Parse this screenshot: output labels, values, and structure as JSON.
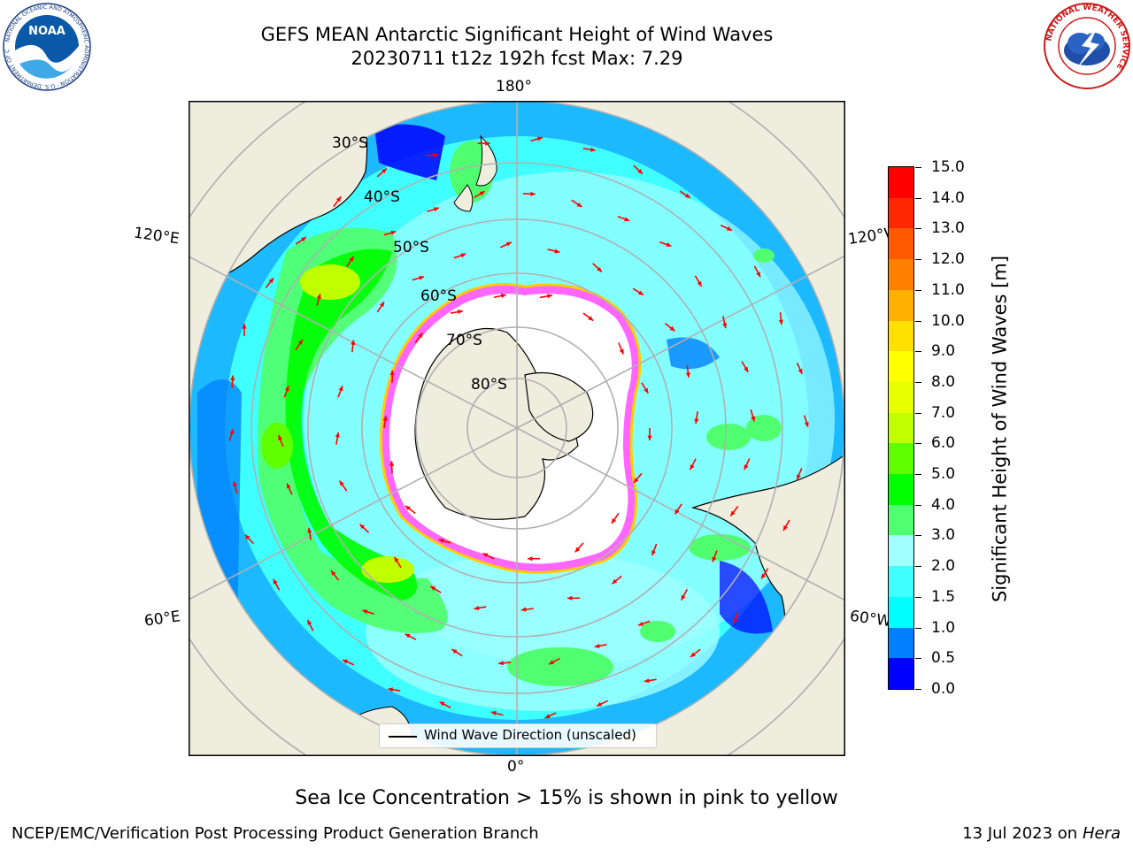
{
  "title": {
    "line1": "GEFS MEAN Antarctic Significant Height of Wind Waves",
    "line2": "20230711 t12z 192h fcst   Max: 7.29"
  },
  "map": {
    "projection": "south-polar-stereographic",
    "longitude_labels": [
      "180°",
      "120°E",
      "120°W",
      "60°E",
      "60°W",
      "0°"
    ],
    "latitude_labels": [
      "30°S",
      "40°S",
      "50°S",
      "60°S",
      "70°S",
      "80°S"
    ],
    "legend_label": "Wind Wave Direction (unscaled)",
    "land_color": "#EEEDDE",
    "arrow_color": "#ff0000"
  },
  "colorbar": {
    "label": "Significant Height of Wind Waves [m]",
    "ticks": [
      "0.0",
      "0.5",
      "1.0",
      "1.5",
      "2.0",
      "3.0",
      "4.0",
      "5.0",
      "6.0",
      "7.0",
      "8.0",
      "9.0",
      "10.0",
      "11.0",
      "12.0",
      "13.0",
      "14.0",
      "15.0"
    ],
    "colors": [
      "#0000ff",
      "#0080ff",
      "#00ffff",
      "#40ffff",
      "#a0ffff",
      "#50ff70",
      "#00ff00",
      "#60ff00",
      "#c0ff00",
      "#e8ff00",
      "#ffff00",
      "#ffe000",
      "#ffb000",
      "#ff8000",
      "#ff5a00",
      "#ff2800",
      "#ff0000"
    ]
  },
  "chart_data": {
    "type": "heatmap",
    "title": "GEFS MEAN Antarctic Significant Height of Wind Waves",
    "subtitle": "20230711 t12z 192h fcst   Max: 7.29",
    "colorbar_label": "Significant Height of Wind Waves [m]",
    "levels": [
      0.0,
      0.5,
      1.0,
      1.5,
      2.0,
      3.0,
      4.0,
      5.0,
      6.0,
      7.0,
      8.0,
      9.0,
      10.0,
      11.0,
      12.0,
      13.0,
      14.0,
      15.0
    ],
    "max_value": 7.29,
    "legend": "Wind Wave Direction (unscaled)"
  },
  "note": "Sea Ice Concentration > 15% is shown in pink to yellow",
  "footer": {
    "left": "NCEP/EMC/Verification Post Processing Product Generation Branch",
    "right_date": "13 Jul 2023 on ",
    "right_host": "Hera"
  },
  "logos": {
    "noaa_text": "NOAA",
    "noaa_ring": "NATIONAL OCEANIC AND ATMOSPHERIC ADMINISTRATION · U.S. DEPARTMENT OF COMMERCE",
    "nws_ring": "NATIONAL WEATHER SERVICE"
  }
}
